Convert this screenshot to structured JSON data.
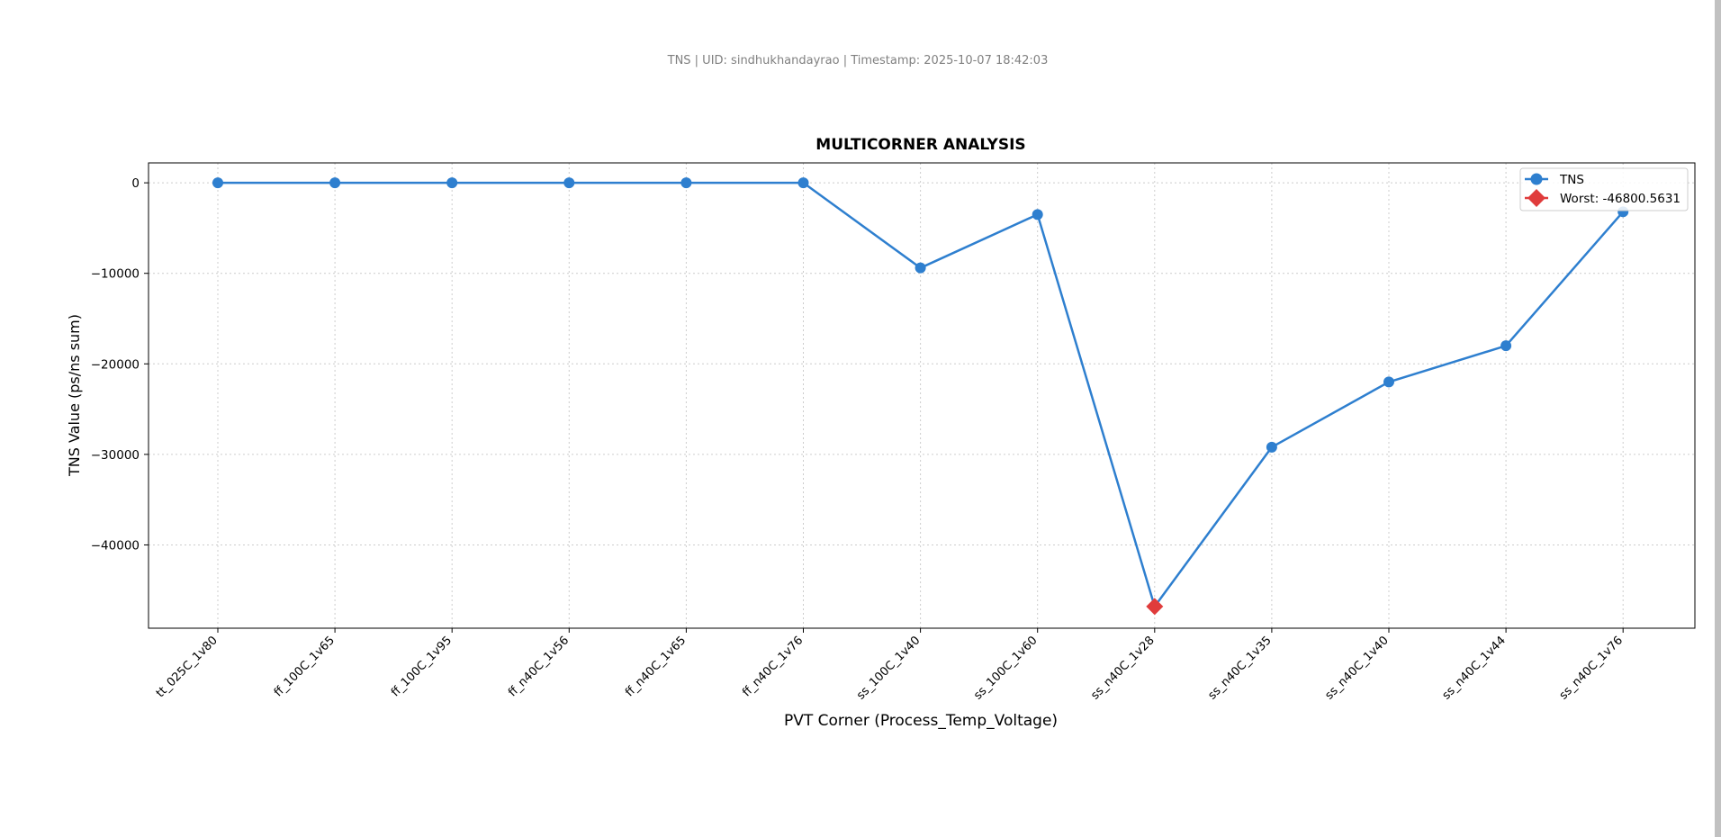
{
  "header": {
    "subtitle": "TNS | UID: sindhukhandayrao | Timestamp: 2025-10-07 18:42:03"
  },
  "colors": {
    "series": "#2e7fcf",
    "worst": "#e03c3c",
    "grid": "#cccccc",
    "header_text": "#808080"
  },
  "chart_data": {
    "type": "line",
    "title": "MULTICORNER ANALYSIS",
    "xlabel": "PVT Corner (Process_Temp_Voltage)",
    "ylabel": "TNS Value (ps/ns sum)",
    "categories": [
      "tt_025C_1v80",
      "ff_100C_1v65",
      "ff_100C_1v95",
      "ff_n40C_1v56",
      "ff_n40C_1v65",
      "ff_n40C_1v76",
      "ss_100C_1v40",
      "ss_100C_1v60",
      "ss_n40C_1v28",
      "ss_n40C_1v35",
      "ss_n40C_1v40",
      "ss_n40C_1v44",
      "ss_n40C_1v76"
    ],
    "series": [
      {
        "name": "TNS",
        "values": [
          0,
          0,
          0,
          0,
          0,
          0,
          -9400,
          -3500,
          -46800.5631,
          -29200,
          -22000,
          -18000,
          -3200
        ]
      }
    ],
    "worst": {
      "label": "Worst: -46800.5631",
      "index": 8,
      "value": -46800.5631
    },
    "legend_labels": [
      "TNS",
      "Worst: -46800.5631"
    ],
    "legend_position": "top-right",
    "yticks": [
      0,
      -10000,
      -20000,
      -30000,
      -40000
    ],
    "ytick_labels": [
      "0",
      "−10000",
      "−20000",
      "−30000",
      "−40000"
    ],
    "ylim": [
      -49200,
      2200
    ],
    "grid": true,
    "grid_style": "dotted"
  }
}
